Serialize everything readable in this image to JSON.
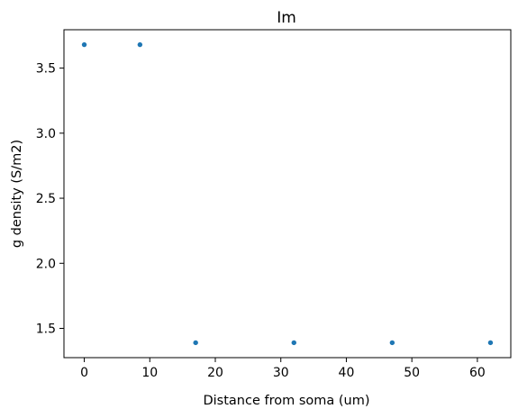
{
  "chart_data": {
    "type": "scatter",
    "title": "Im",
    "xlabel": "Distance from soma (um)",
    "ylabel": "g density (S/m2)",
    "xlim": [
      -3.1,
      65.1
    ],
    "ylim": [
      1.275,
      3.795
    ],
    "xticks": [
      0,
      10,
      20,
      30,
      40,
      50,
      60
    ],
    "yticks": [
      1.5,
      2.0,
      2.5,
      3.0,
      3.5
    ],
    "ytick_labels": [
      "1.5",
      "2.0",
      "2.5",
      "3.0",
      "3.5"
    ],
    "grid": false,
    "series": [
      {
        "color": "#1f77b4",
        "x": [
          0,
          8.5,
          17,
          32,
          47,
          62
        ],
        "y": [
          3.68,
          3.68,
          1.39,
          1.39,
          1.39,
          1.39
        ]
      }
    ]
  }
}
